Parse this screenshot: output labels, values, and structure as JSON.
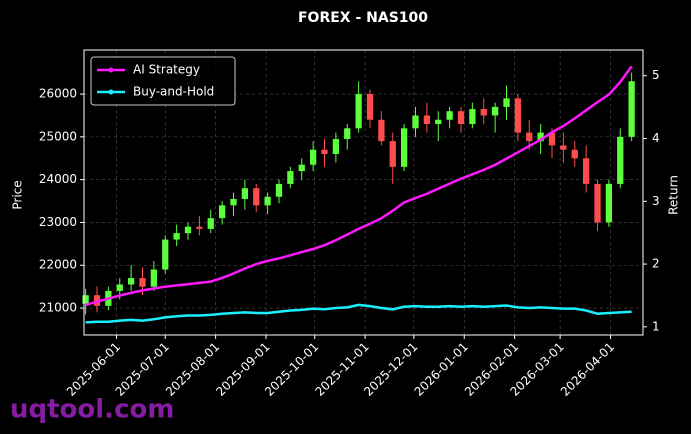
{
  "chart_data": {
    "type": "candlestick",
    "title": "FOREX - NAS100",
    "ylabel": "Price",
    "y2label": "Return",
    "watermark": "uqtool.com",
    "x": [
      "2025-05-13",
      "2025-05-20",
      "2025-05-27",
      "2025-06-03",
      "2025-06-10",
      "2025-06-17",
      "2025-06-24",
      "2025-07-01",
      "2025-07-08",
      "2025-07-15",
      "2025-07-22",
      "2025-07-29",
      "2025-08-05",
      "2025-08-12",
      "2025-08-19",
      "2025-08-26",
      "2025-09-02",
      "2025-09-09",
      "2025-09-16",
      "2025-09-23",
      "2025-09-30",
      "2025-10-07",
      "2025-10-14",
      "2025-10-21",
      "2025-10-28",
      "2025-11-04",
      "2025-11-11",
      "2025-11-18",
      "2025-11-25",
      "2025-12-02",
      "2025-12-09",
      "2025-12-16",
      "2025-12-23",
      "2025-12-30",
      "2026-01-06",
      "2026-01-13",
      "2026-01-20",
      "2026-01-27",
      "2026-02-03",
      "2026-02-10",
      "2026-02-17",
      "2026-02-24",
      "2026-03-03",
      "2026-03-10",
      "2026-03-17",
      "2026-03-24",
      "2026-03-31",
      "2026-04-07",
      "2026-04-14"
    ],
    "open": [
      21100,
      21300,
      21050,
      21400,
      21550,
      21700,
      21500,
      21900,
      22600,
      22750,
      22900,
      22850,
      23100,
      23400,
      23550,
      23800,
      23400,
      23600,
      23900,
      24200,
      24350,
      24700,
      24600,
      24950,
      25200,
      26000,
      25400,
      24900,
      24300,
      25200,
      25500,
      25300,
      25400,
      25600,
      25300,
      25650,
      25500,
      25700,
      25900,
      25100,
      24900,
      25100,
      24800,
      24700,
      24500,
      23900,
      23000,
      23900,
      25000
    ],
    "high": [
      21450,
      21500,
      21500,
      21700,
      22000,
      21950,
      22100,
      22700,
      22950,
      23000,
      23150,
      23300,
      23500,
      23700,
      24000,
      23900,
      23700,
      24000,
      24300,
      24500,
      24900,
      24950,
      25100,
      25300,
      26300,
      26100,
      25600,
      25100,
      25300,
      25700,
      25800,
      25600,
      25700,
      25700,
      25800,
      25900,
      25800,
      26200,
      26000,
      25400,
      25300,
      25200,
      25100,
      24900,
      24800,
      24000,
      24000,
      25200,
      26500
    ],
    "low": [
      20850,
      20900,
      20950,
      21200,
      21400,
      21300,
      21400,
      21800,
      22450,
      22600,
      22700,
      22750,
      22950,
      23150,
      23300,
      23250,
      23200,
      23450,
      23800,
      24000,
      24200,
      24300,
      24400,
      24700,
      25100,
      25200,
      24800,
      23900,
      24200,
      25000,
      25100,
      24900,
      25200,
      25100,
      25200,
      25300,
      25100,
      25400,
      24900,
      24700,
      24600,
      24500,
      24400,
      24300,
      23700,
      22800,
      22900,
      23800,
      24900
    ],
    "close": [
      21300,
      21050,
      21400,
      21550,
      21700,
      21500,
      21900,
      22600,
      22750,
      22900,
      22850,
      23100,
      23400,
      23550,
      23800,
      23400,
      23600,
      23900,
      24200,
      24350,
      24700,
      24600,
      24950,
      25200,
      26000,
      25400,
      24900,
      24300,
      25200,
      25500,
      25300,
      25400,
      25600,
      25300,
      25650,
      25500,
      25700,
      25900,
      25100,
      24900,
      25100,
      24800,
      24700,
      24500,
      23900,
      23000,
      23900,
      25000,
      26300
    ],
    "up_color": "#5cff3c",
    "down_color": "#ff4c4c",
    "series": [
      {
        "name": "AI Strategy",
        "color": "#ff19ff",
        "axis": "y2",
        "values": [
          1.35,
          1.4,
          1.45,
          1.5,
          1.54,
          1.58,
          1.61,
          1.64,
          1.66,
          1.68,
          1.7,
          1.72,
          1.78,
          1.85,
          1.93,
          2.0,
          2.05,
          2.09,
          2.14,
          2.19,
          2.24,
          2.3,
          2.38,
          2.47,
          2.56,
          2.64,
          2.73,
          2.85,
          2.98,
          3.05,
          3.12,
          3.2,
          3.28,
          3.36,
          3.43,
          3.5,
          3.58,
          3.68,
          3.78,
          3.88,
          3.98,
          4.1,
          4.2,
          4.32,
          4.45,
          4.58,
          4.7,
          4.9,
          5.15
        ]
      },
      {
        "name": "Buy-and-Hold",
        "color": "#19f0ff",
        "axis": "y2",
        "values": [
          1.07,
          1.08,
          1.08,
          1.1,
          1.11,
          1.1,
          1.12,
          1.15,
          1.17,
          1.18,
          1.18,
          1.19,
          1.21,
          1.22,
          1.23,
          1.22,
          1.22,
          1.24,
          1.26,
          1.27,
          1.29,
          1.28,
          1.3,
          1.31,
          1.35,
          1.33,
          1.3,
          1.28,
          1.32,
          1.33,
          1.32,
          1.32,
          1.33,
          1.32,
          1.33,
          1.32,
          1.33,
          1.34,
          1.31,
          1.3,
          1.31,
          1.3,
          1.29,
          1.29,
          1.26,
          1.21,
          1.22,
          1.23,
          1.24
        ]
      }
    ],
    "xlim": [
      "2025-05-12",
      "2026-04-21"
    ],
    "xticks": [
      "2025-06-01",
      "2025-07-01",
      "2025-08-01",
      "2025-09-01",
      "2025-10-01",
      "2025-11-01",
      "2025-12-01",
      "2026-01-01",
      "2026-02-01",
      "2026-03-01",
      "2026-04-01"
    ],
    "ylim": [
      20370,
      27030
    ],
    "yticks": [
      21000,
      22000,
      23000,
      24000,
      25000,
      26000
    ],
    "y2lim": [
      0.87,
      5.41
    ],
    "y2ticks": [
      1,
      2,
      3,
      4,
      5
    ],
    "grid": true,
    "legend": "upper left"
  }
}
